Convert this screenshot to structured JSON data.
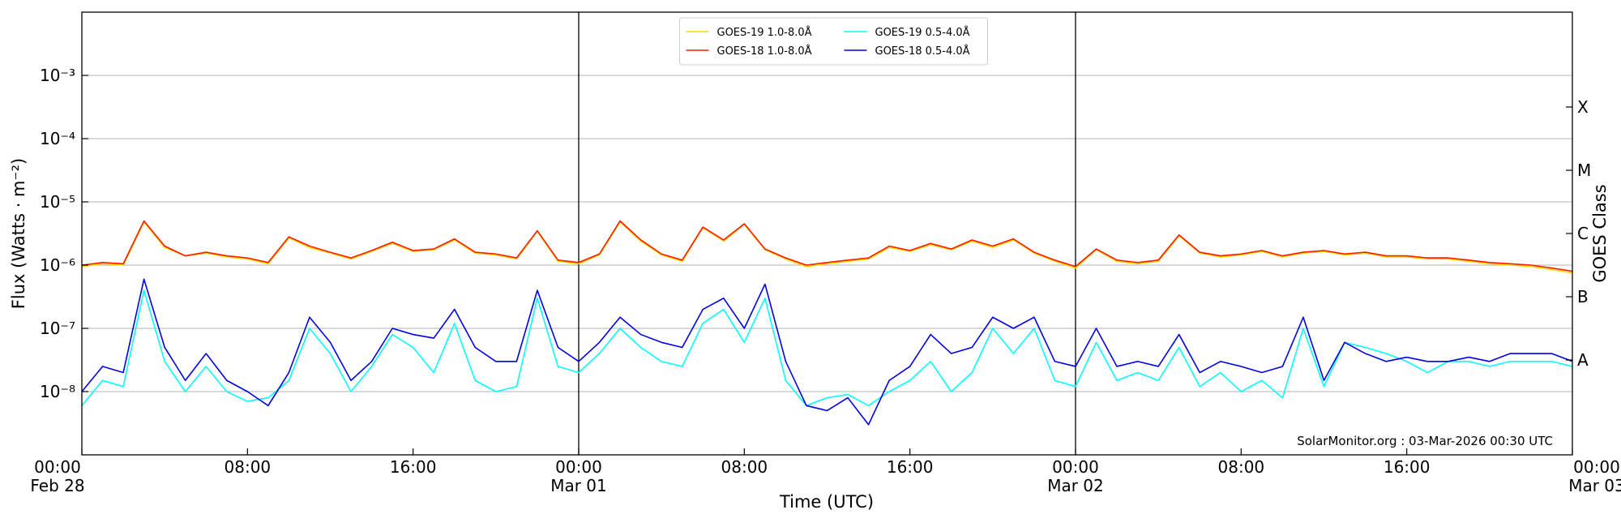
{
  "chart_data": {
    "type": "line",
    "xlabel": "Time (UTC)",
    "ylabel": "Flux (Watts · m⁻²)",
    "y2label": "GOES Class",
    "annotation": "SolarMonitor.org : 03-Mar-2026 00:30 UTC",
    "yscale": "log",
    "grid": true,
    "legend_position": "upper center",
    "xlim": [
      0,
      72
    ],
    "ylim": [
      1e-09,
      0.01
    ],
    "y2lim": [
      1e-09,
      0.01
    ],
    "xticks": [
      {
        "value": 0,
        "label": "00:00\nFeb 28"
      },
      {
        "value": 8,
        "label": "08:00"
      },
      {
        "value": 16,
        "label": "16:00"
      },
      {
        "value": 24,
        "label": "00:00\nMar 01"
      },
      {
        "value": 32,
        "label": "08:00"
      },
      {
        "value": 40,
        "label": "16:00"
      },
      {
        "value": 48,
        "label": "00:00\nMar 02"
      },
      {
        "value": 56,
        "label": "08:00"
      },
      {
        "value": 64,
        "label": "16:00"
      },
      {
        "value": 72,
        "label": "00:00\nMar 03"
      }
    ],
    "day_lines": [
      24,
      48
    ],
    "yticks": [
      {
        "value": 1e-08,
        "label": "10⁻⁸"
      },
      {
        "value": 1e-07,
        "label": "10⁻⁷"
      },
      {
        "value": 1e-06,
        "label": "10⁻⁶"
      },
      {
        "value": 1e-05,
        "label": "10⁻⁵"
      },
      {
        "value": 0.0001,
        "label": "10⁻⁴"
      },
      {
        "value": 0.001,
        "label": "10⁻³"
      }
    ],
    "y2ticks": [
      {
        "value": 3.162e-08,
        "label": "A"
      },
      {
        "value": 3.162e-07,
        "label": "B"
      },
      {
        "value": 3.162e-06,
        "label": "C"
      },
      {
        "value": 3.162e-05,
        "label": "M"
      },
      {
        "value": 0.0003162,
        "label": "X"
      }
    ],
    "x": [
      0,
      1,
      2,
      3,
      4,
      5,
      6,
      7,
      8,
      9,
      10,
      11,
      12,
      13,
      14,
      15,
      16,
      17,
      18,
      19,
      20,
      21,
      22,
      23,
      24,
      25,
      26,
      27,
      28,
      29,
      30,
      31,
      32,
      33,
      34,
      35,
      36,
      37,
      38,
      39,
      40,
      41,
      42,
      43,
      44,
      45,
      46,
      47,
      48,
      49,
      50,
      51,
      52,
      53,
      54,
      55,
      56,
      57,
      58,
      59,
      60,
      61,
      62,
      63,
      64,
      65,
      66,
      67,
      68,
      69,
      70,
      71,
      72
    ],
    "series": [
      {
        "name": "GOES-19 1.0-8.0Å",
        "color": "#ffd700",
        "values": [
          9.5e-07,
          1.05e-06,
          1e-06,
          4.8e-06,
          1.9e-06,
          1.4e-06,
          1.55e-06,
          1.35e-06,
          1.25e-06,
          1.05e-06,
          2.7e-06,
          1.9e-06,
          1.55e-06,
          1.25e-06,
          1.65e-06,
          2.2e-06,
          1.65e-06,
          1.75e-06,
          2.5e-06,
          1.55e-06,
          1.45e-06,
          1.25e-06,
          3.4e-06,
          1.15e-06,
          1.05e-06,
          1.45e-06,
          4.8e-06,
          2.4e-06,
          1.45e-06,
          1.15e-06,
          3.9e-06,
          2.4e-06,
          4.4e-06,
          1.75e-06,
          1.25e-06,
          9.5e-07,
          1.05e-06,
          1.15e-06,
          1.25e-06,
          1.9e-06,
          1.65e-06,
          2.1e-06,
          1.75e-06,
          2.4e-06,
          1.9e-06,
          2.5e-06,
          1.55e-06,
          1.15e-06,
          9e-07,
          1.75e-06,
          1.15e-06,
          1.05e-06,
          1.15e-06,
          2.9e-06,
          1.55e-06,
          1.35e-06,
          1.45e-06,
          1.65e-06,
          1.35e-06,
          1.55e-06,
          1.65e-06,
          1.45e-06,
          1.55e-06,
          1.35e-06,
          1.35e-06,
          1.25e-06,
          1.25e-06,
          1.15e-06,
          1.05e-06,
          1e-06,
          9.5e-07,
          8.5e-07,
          7.5e-07
        ]
      },
      {
        "name": "GOES-18 1.0-8.0Å",
        "color": "#ff1a00",
        "values": [
          1e-06,
          1.1e-06,
          1.05e-06,
          5e-06,
          2e-06,
          1.4e-06,
          1.6e-06,
          1.4e-06,
          1.3e-06,
          1.1e-06,
          2.8e-06,
          2e-06,
          1.6e-06,
          1.3e-06,
          1.7e-06,
          2.3e-06,
          1.7e-06,
          1.8e-06,
          2.6e-06,
          1.6e-06,
          1.5e-06,
          1.3e-06,
          3.5e-06,
          1.2e-06,
          1.1e-06,
          1.5e-06,
          5e-06,
          2.5e-06,
          1.5e-06,
          1.2e-06,
          4e-06,
          2.5e-06,
          4.5e-06,
          1.8e-06,
          1.3e-06,
          1e-06,
          1.1e-06,
          1.2e-06,
          1.3e-06,
          2e-06,
          1.7e-06,
          2.2e-06,
          1.8e-06,
          2.5e-06,
          2e-06,
          2.6e-06,
          1.6e-06,
          1.2e-06,
          9.5e-07,
          1.8e-06,
          1.2e-06,
          1.1e-06,
          1.2e-06,
          3e-06,
          1.6e-06,
          1.4e-06,
          1.5e-06,
          1.7e-06,
          1.4e-06,
          1.6e-06,
          1.7e-06,
          1.5e-06,
          1.6e-06,
          1.4e-06,
          1.4e-06,
          1.3e-06,
          1.3e-06,
          1.2e-06,
          1.1e-06,
          1.05e-06,
          1e-06,
          9e-07,
          8e-07
        ]
      },
      {
        "name": "GOES-19 0.5-4.0Å",
        "color": "#00ffff",
        "values": [
          6e-09,
          1.5e-08,
          1.2e-08,
          4e-07,
          3e-08,
          1e-08,
          2.5e-08,
          1e-08,
          7e-09,
          8e-09,
          1.5e-08,
          1e-07,
          4e-08,
          1e-08,
          2.5e-08,
          8e-08,
          5e-08,
          2e-08,
          1.2e-07,
          1.5e-08,
          1e-08,
          1.2e-08,
          3e-07,
          2.5e-08,
          2e-08,
          4e-08,
          1e-07,
          5e-08,
          3e-08,
          2.5e-08,
          1.2e-07,
          2e-07,
          6e-08,
          3e-07,
          1.5e-08,
          6e-09,
          8e-09,
          9e-09,
          6e-09,
          1e-08,
          1.5e-08,
          3e-08,
          1e-08,
          2e-08,
          1e-07,
          4e-08,
          1e-07,
          1.5e-08,
          1.2e-08,
          6e-08,
          1.5e-08,
          2e-08,
          1.5e-08,
          5e-08,
          1.2e-08,
          2e-08,
          1e-08,
          1.5e-08,
          8e-09,
          1e-07,
          1.2e-08,
          6e-08,
          5e-08,
          4e-08,
          3e-08,
          2e-08,
          3e-08,
          3e-08,
          2.5e-08,
          3e-08,
          3e-08,
          3e-08,
          2.5e-08
        ]
      },
      {
        "name": "GOES-18 0.5-4.0Å",
        "color": "#0000e6",
        "values": [
          1e-08,
          2.5e-08,
          2e-08,
          6e-07,
          5e-08,
          1.5e-08,
          4e-08,
          1.5e-08,
          1e-08,
          6e-09,
          2e-08,
          1.5e-07,
          6e-08,
          1.5e-08,
          3e-08,
          1e-07,
          8e-08,
          7e-08,
          2e-07,
          5e-08,
          3e-08,
          3e-08,
          4e-07,
          5e-08,
          3e-08,
          6e-08,
          1.5e-07,
          8e-08,
          6e-08,
          5e-08,
          2e-07,
          3e-07,
          1e-07,
          5e-07,
          3e-08,
          6e-09,
          5e-09,
          8e-09,
          3e-09,
          1.5e-08,
          2.5e-08,
          8e-08,
          4e-08,
          5e-08,
          1.5e-07,
          1e-07,
          1.5e-07,
          3e-08,
          2.5e-08,
          1e-07,
          2.5e-08,
          3e-08,
          2.5e-08,
          8e-08,
          2e-08,
          3e-08,
          2.5e-08,
          2e-08,
          2.5e-08,
          1.5e-07,
          1.5e-08,
          6e-08,
          4e-08,
          3e-08,
          3.5e-08,
          3e-08,
          3e-08,
          3.5e-08,
          3e-08,
          4e-08,
          4e-08,
          4e-08,
          3e-08
        ]
      }
    ]
  }
}
